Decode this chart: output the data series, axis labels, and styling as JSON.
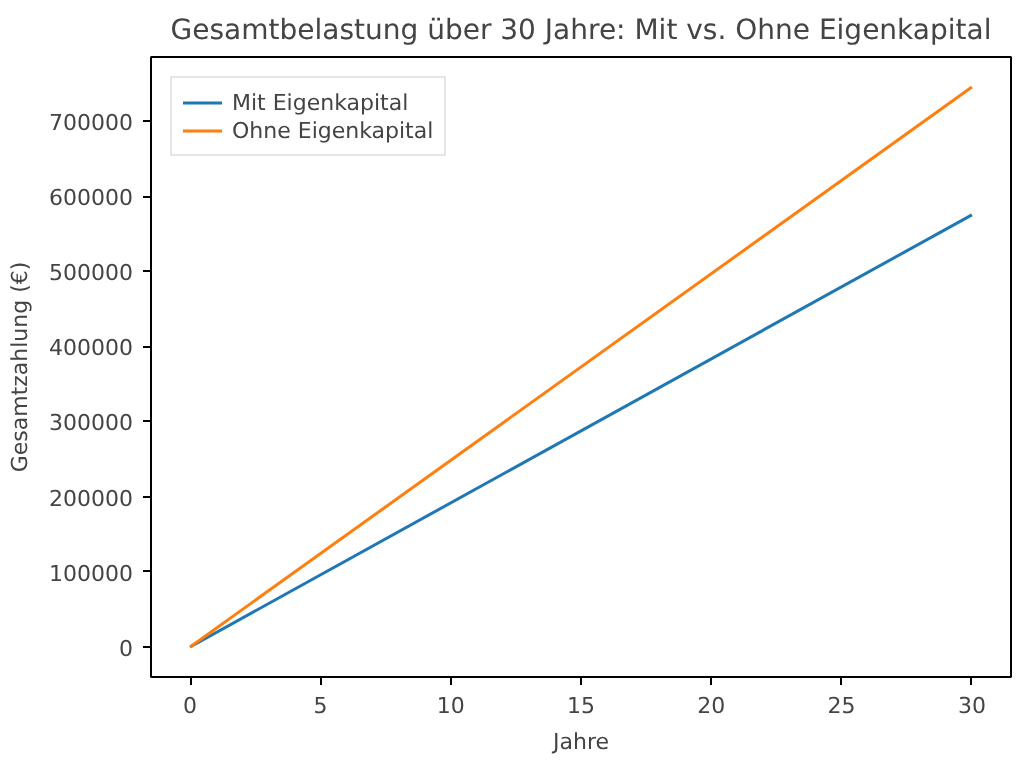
{
  "chart_data": {
    "type": "line",
    "title": "Gesamtbelastung über 30 Jahre: Mit vs. Ohne Eigenkapital",
    "xlabel": "Jahre",
    "ylabel": "Gesamtzahlung (€)",
    "x": [
      0,
      30
    ],
    "series": [
      {
        "name": "Mit Eigenkapital",
        "color": "#1f77b4",
        "values": [
          0,
          575000
        ]
      },
      {
        "name": "Ohne Eigenkapital",
        "color": "#ff7f0e",
        "values": [
          0,
          745000
        ]
      }
    ],
    "xlim": [
      -1.5,
      31.5
    ],
    "ylim": [
      -40000,
      785000
    ],
    "xticks": [
      0,
      5,
      10,
      15,
      20,
      25,
      30
    ],
    "yticks": [
      0,
      100000,
      200000,
      300000,
      400000,
      500000,
      600000,
      700000
    ],
    "grid": false,
    "legend": "top left",
    "marker": "none",
    "line_style": "solid"
  }
}
